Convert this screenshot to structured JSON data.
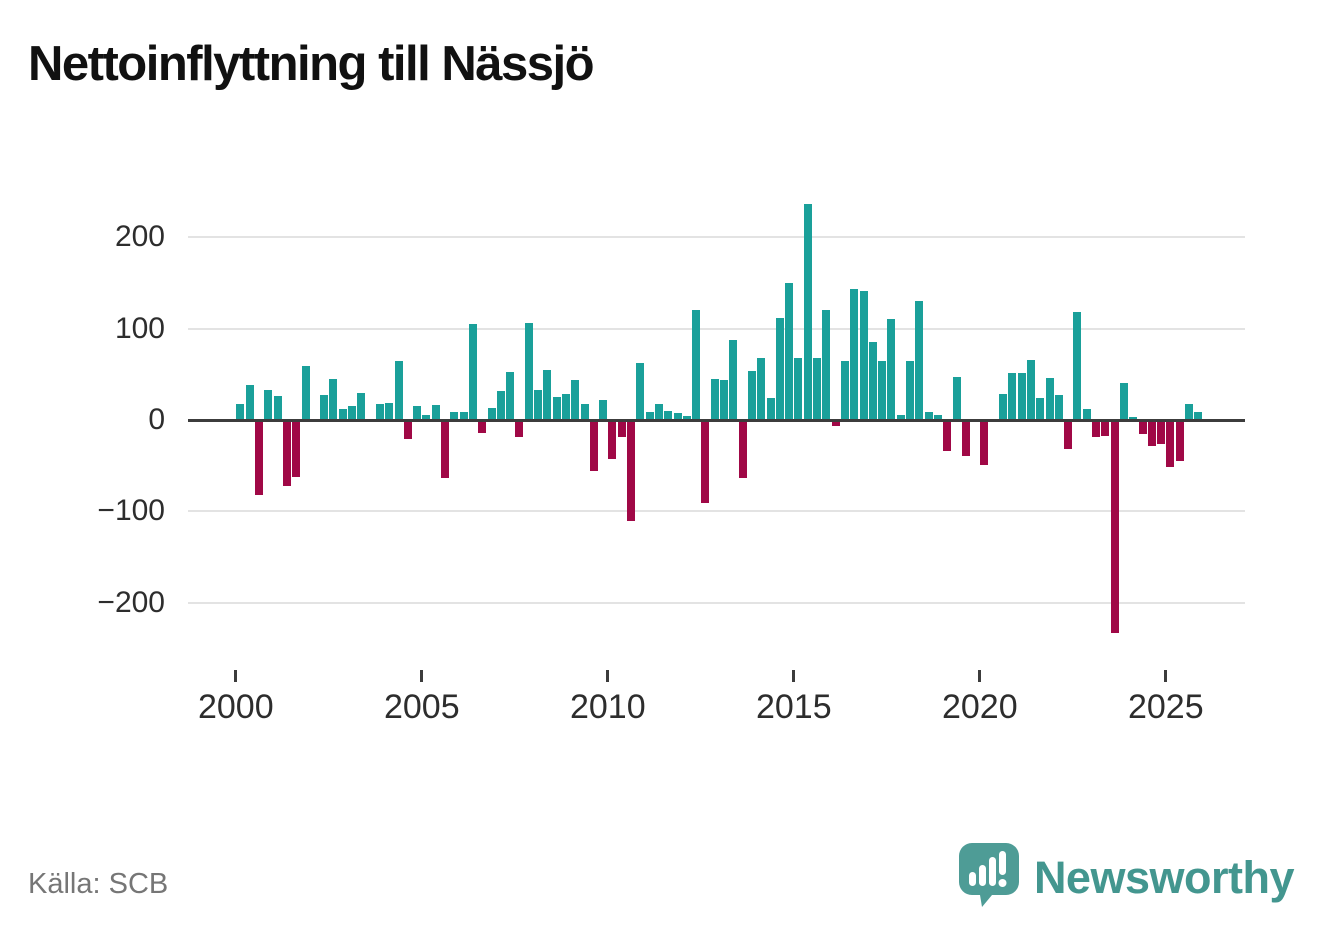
{
  "title": "Nettoinflyttning till Nässjö",
  "source": "Källa: SCB",
  "branding": {
    "logo_text": "Newsworthy",
    "logo_color": "#4E9C96"
  },
  "chart_data": {
    "type": "bar",
    "title": "Nettoinflyttning till Nässjö",
    "frequency": "quarterly",
    "x_start_year": 2000,
    "values": [
      18,
      38,
      -82,
      33,
      26,
      -72,
      -62,
      59,
      0,
      27,
      45,
      12,
      15,
      30,
      0,
      18,
      19,
      65,
      -21,
      15,
      5,
      16,
      -64,
      9,
      9,
      105,
      -14,
      13,
      32,
      53,
      -19,
      106,
      33,
      55,
      25,
      29,
      44,
      17,
      -56,
      22,
      -43,
      -19,
      -111,
      62,
      9,
      18,
      10,
      8,
      4,
      120,
      -91,
      45,
      44,
      88,
      -64,
      54,
      68,
      24,
      112,
      150,
      68,
      237,
      68,
      120,
      -7,
      65,
      143,
      141,
      85,
      65,
      111,
      6,
      65,
      130,
      9,
      5,
      -34,
      47,
      -39,
      0,
      -49,
      0,
      28,
      51,
      52,
      66,
      24,
      46,
      27,
      -32,
      118,
      12,
      -19,
      -18,
      -233,
      41,
      3,
      -15,
      -29,
      -26,
      -52,
      -45,
      18,
      9
    ],
    "y_ticks": [
      {
        "label": "200",
        "value": 200
      },
      {
        "label": "100",
        "value": 100
      },
      {
        "label": "0",
        "value": 0
      },
      {
        "label": "−100",
        "value": -100
      },
      {
        "label": "−200",
        "value": -200
      }
    ],
    "x_ticks": [
      {
        "label": "2000",
        "year": 2000
      },
      {
        "label": "2005",
        "year": 2005
      },
      {
        "label": "2010",
        "year": 2010
      },
      {
        "label": "2015",
        "year": 2015
      },
      {
        "label": "2020",
        "year": 2020
      },
      {
        "label": "2025",
        "year": 2025
      }
    ],
    "ylim": [
      -250,
      250
    ],
    "grid": true,
    "legend": false,
    "colors": {
      "positive": "#1aa09a",
      "negative": "#a00846"
    }
  }
}
